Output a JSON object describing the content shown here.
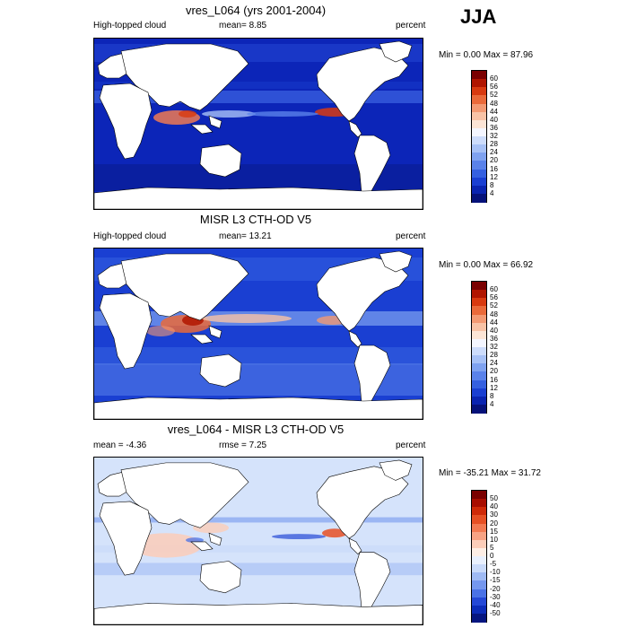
{
  "season": "JJA",
  "panels": [
    {
      "id": "model",
      "title": "vres_L064 (yrs 2001-2004)",
      "left_label": "High-topped cloud",
      "center_label": "mean=  8.85",
      "right_label": "percent",
      "minmax": "Min =   0.00 Max =  87.96",
      "colorbar_labels": [
        "60",
        "56",
        "52",
        "48",
        "44",
        "40",
        "36",
        "32",
        "28",
        "24",
        "20",
        "16",
        "12",
        "8",
        "4"
      ],
      "colorbar_colors": [
        "#7a0000",
        "#b01500",
        "#d83a10",
        "#ea6a3a",
        "#f39a73",
        "#f8c3a6",
        "#fce5d6",
        "#f4f6ff",
        "#cddcfb",
        "#a7c1f6",
        "#7fa2f0",
        "#5a82ea",
        "#3560e0",
        "#1a3fd2",
        "#0a24b0",
        "#06127a"
      ]
    },
    {
      "id": "obs",
      "title": "MISR L3 CTH-OD V5",
      "left_label": "High-topped cloud",
      "center_label": "mean=  13.21",
      "right_label": "percent",
      "minmax": "Min =   0.00 Max =  66.92",
      "colorbar_labels": [
        "60",
        "56",
        "52",
        "48",
        "44",
        "40",
        "36",
        "32",
        "28",
        "24",
        "20",
        "16",
        "12",
        "8",
        "4"
      ],
      "colorbar_colors": [
        "#7a0000",
        "#b01500",
        "#d83a10",
        "#ea6a3a",
        "#f39a73",
        "#f8c3a6",
        "#fce5d6",
        "#f4f6ff",
        "#cddcfb",
        "#a7c1f6",
        "#7fa2f0",
        "#5a82ea",
        "#3560e0",
        "#1a3fd2",
        "#0a24b0",
        "#06127a"
      ]
    },
    {
      "id": "diff",
      "title": "vres_L064 - MISR L3 CTH-OD V5",
      "left_label": "mean =  -4.36",
      "center_label": "rmse =   7.25",
      "right_label": "percent",
      "minmax": "Min = -35.21 Max =  31.72",
      "colorbar_labels": [
        "50",
        "40",
        "30",
        "20",
        "15",
        "10",
        "5",
        "0",
        "-5",
        "-10",
        "-15",
        "-20",
        "-30",
        "-40",
        "-50"
      ],
      "colorbar_colors": [
        "#7a0000",
        "#a80d00",
        "#cf2a08",
        "#e65024",
        "#f27a52",
        "#f7a384",
        "#fbcdb9",
        "#fdeee5",
        "#e9f0fd",
        "#c9dafa",
        "#9fbaf4",
        "#7597ee",
        "#4a72e6",
        "#2448d6",
        "#0c2cb8",
        "#061680"
      ]
    }
  ]
}
